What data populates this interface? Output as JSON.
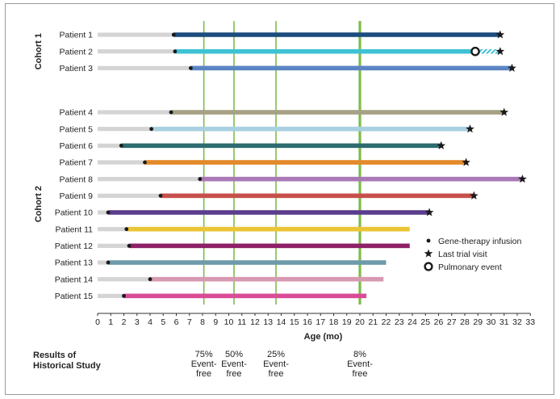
{
  "chart_data": {
    "type": "swimmer",
    "xlabel": "Age (mo)",
    "xlim": [
      0,
      33
    ],
    "xticks": [
      0,
      1,
      2,
      3,
      4,
      5,
      6,
      7,
      8,
      9,
      10,
      11,
      12,
      13,
      14,
      15,
      16,
      17,
      18,
      19,
      20,
      21,
      22,
      23,
      24,
      25,
      26,
      27,
      28,
      29,
      30,
      31,
      32,
      33
    ],
    "cohorts": [
      {
        "label": "Cohort 1",
        "patients": [
          {
            "name": "Patient 1",
            "infusion": 5.8,
            "end": 30.7,
            "star": true,
            "color": "#1d4d7e"
          },
          {
            "name": "Patient 2",
            "infusion": 5.9,
            "end": 30.7,
            "star": true,
            "color": "#3ec2d3",
            "hatch_from": 28.8,
            "pulmonary_event": 28.8
          },
          {
            "name": "Patient 3",
            "infusion": 7.1,
            "end": 31.6,
            "star": true,
            "color": "#5b85c4"
          }
        ]
      },
      {
        "label": "Cohort 2",
        "patients": [
          {
            "name": "Patient 4",
            "infusion": 5.6,
            "end": 31.0,
            "star": true,
            "color": "#a6a184"
          },
          {
            "name": "Patient 5",
            "infusion": 4.1,
            "end": 28.4,
            "star": true,
            "color": "#a9d0e0"
          },
          {
            "name": "Patient 6",
            "infusion": 1.8,
            "end": 26.2,
            "star": true,
            "color": "#2d6b70"
          },
          {
            "name": "Patient 7",
            "infusion": 3.6,
            "end": 28.1,
            "star": true,
            "color": "#e3892a"
          },
          {
            "name": "Patient 8",
            "infusion": 7.8,
            "end": 32.4,
            "star": true,
            "color": "#a979b5"
          },
          {
            "name": "Patient 9",
            "infusion": 4.8,
            "end": 28.7,
            "star": true,
            "color": "#c6504a"
          },
          {
            "name": "Patient 10",
            "infusion": 0.8,
            "end": 25.3,
            "star": true,
            "color": "#5b3d8e"
          },
          {
            "name": "Patient 11",
            "infusion": 2.2,
            "end": 23.8,
            "star": false,
            "color": "#ecc536"
          },
          {
            "name": "Patient 12",
            "infusion": 2.4,
            "end": 23.8,
            "star": false,
            "color": "#8e2067"
          },
          {
            "name": "Patient 13",
            "infusion": 0.8,
            "end": 22.0,
            "star": false,
            "color": "#6f9aa9"
          },
          {
            "name": "Patient 14",
            "infusion": 4.0,
            "end": 21.8,
            "star": false,
            "color": "#d79ab1"
          },
          {
            "name": "Patient 15",
            "infusion": 2.0,
            "end": 20.5,
            "star": false,
            "color": "#d94b96"
          }
        ]
      }
    ],
    "reference_lines": [
      {
        "x": 8.1,
        "label": "75%\nEvent-\nfree"
      },
      {
        "x": 10.4,
        "label": "50%\nEvent-\nfree"
      },
      {
        "x": 13.6,
        "label": "25%\nEvent-\nfree"
      },
      {
        "x": 20.0,
        "label": "8%\nEvent-\nfree",
        "bold": true
      }
    ],
    "reference_color": "#7dbc4a",
    "pre_infusion_color": "#d4d4d4",
    "legend": [
      {
        "marker": "dot",
        "label": "Gene-therapy infusion"
      },
      {
        "marker": "star",
        "label": "Last trial visit"
      },
      {
        "marker": "ring",
        "label": "Pulmonary event"
      }
    ],
    "historical_heading": "Results of\nHistorical Study"
  }
}
